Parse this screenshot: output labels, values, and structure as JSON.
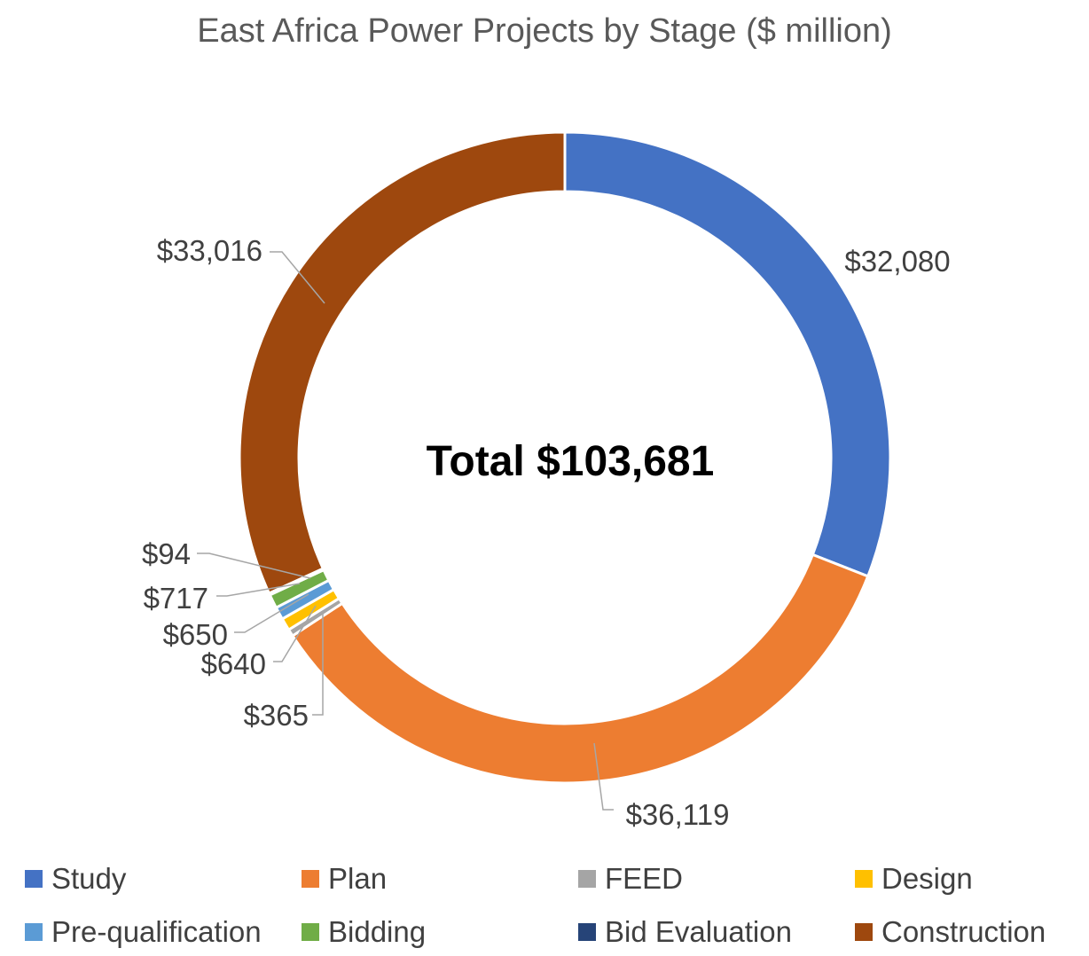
{
  "chart_data": {
    "type": "donut",
    "title": "East Africa Power Projects by Stage ($ million)",
    "center_label": "Total $103,681",
    "categories": [
      "Study",
      "Plan",
      "FEED",
      "Design",
      "Pre-qualification",
      "Bidding",
      "Bid Evaluation",
      "Construction"
    ],
    "values": [
      32080,
      36119,
      365,
      640,
      650,
      717,
      94,
      33016
    ],
    "value_labels": [
      "$32,080",
      "$36,119",
      "$365",
      "$640",
      "$650",
      "$717",
      "$94",
      "$33,016"
    ],
    "colors": [
      "#4472C4",
      "#ED7D31",
      "#A5A5A5",
      "#FFC000",
      "#5B9BD5",
      "#70AD47",
      "#264478",
      "#9E480E"
    ],
    "legend_position": "bottom"
  }
}
